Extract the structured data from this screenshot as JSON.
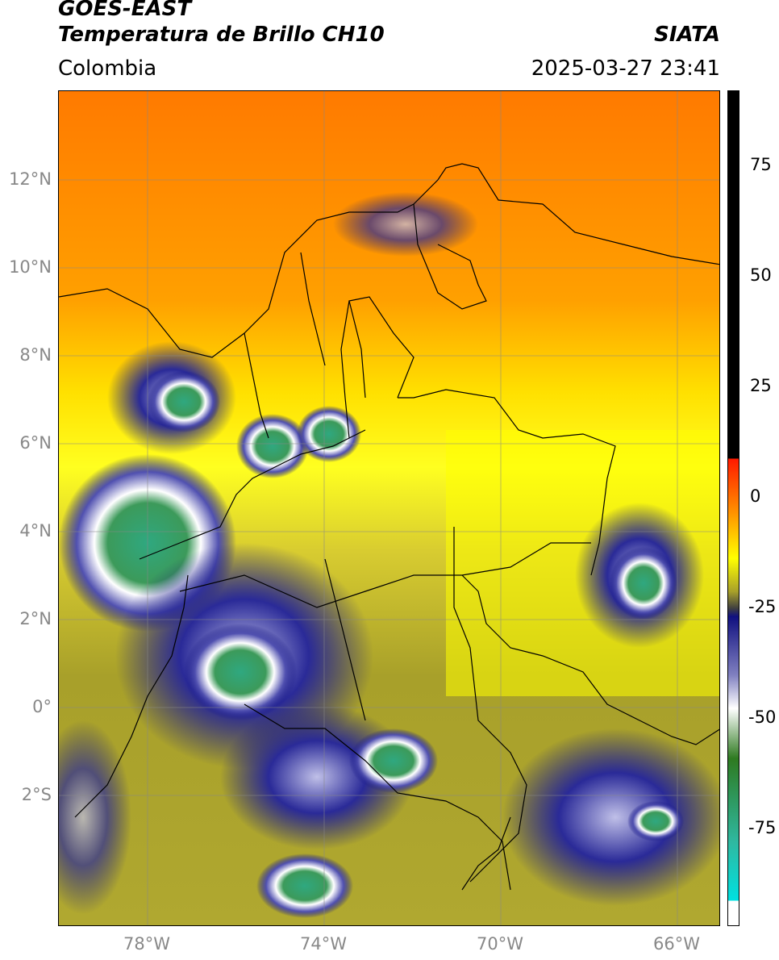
{
  "header": {
    "satellite": "GOES-EAST",
    "product": "Temperatura de Brillo CH10",
    "agency": "SIATA",
    "region": "Colombia",
    "timestamp": "2025-03-27 23:41"
  },
  "axes": {
    "lat_labels": [
      "12°N",
      "10°N",
      "8°N",
      "6°N",
      "4°N",
      "2°N",
      "0°",
      "2°S"
    ],
    "lon_labels": [
      "78°W",
      "74°W",
      "70°W",
      "66°W"
    ]
  },
  "colorbar": {
    "tick_labels": [
      "75",
      "50",
      "25",
      "0",
      "-25",
      "-50",
      "-75"
    ],
    "colors": {
      "warm_black": "#000000",
      "red": "#ff2200",
      "orange": "#ff8800",
      "yellow": "#ffff00",
      "olive": "#a8a02a",
      "navy": "#101080",
      "white": "#ffffff",
      "green": "#2e8b57",
      "teal": "#2fb8a0",
      "cyan": "#00e0e0"
    }
  }
}
